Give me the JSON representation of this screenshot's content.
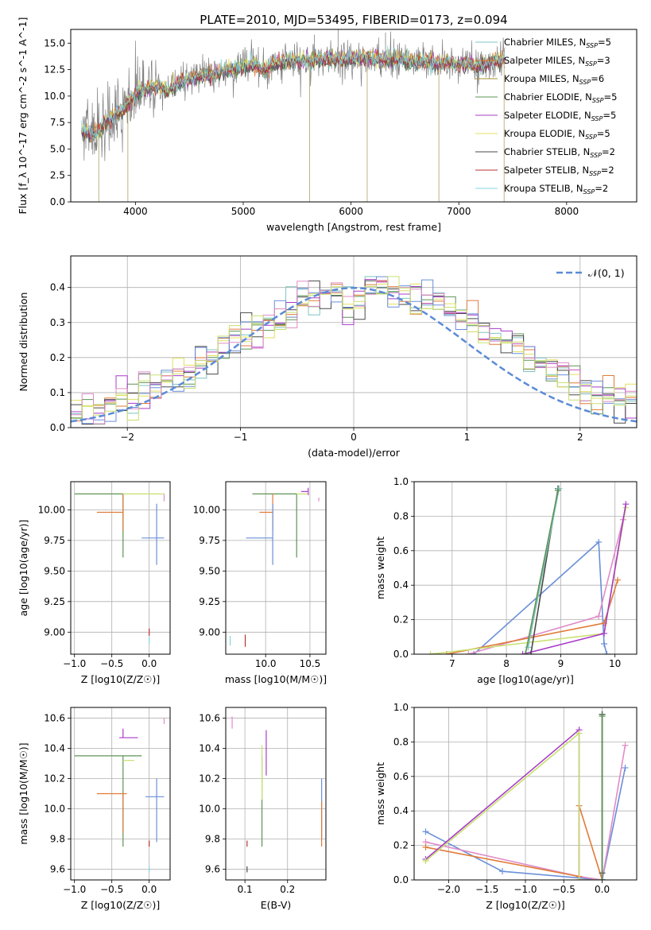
{
  "figure_title": "PLATE=2010, MJD=53495, FIBERID=0173, z=0.094",
  "series_colors": {
    "Chabrier MILES": "#7fc4c0",
    "Salpeter MILES": "#e07b39",
    "Kroupa MILES": "#a89030",
    "Chabrier ELODIE": "#5e9455",
    "Salpeter ELODIE": "#a83cc8",
    "Kroupa ELODIE": "#e0e060",
    "Chabrier STELIB": "#4a4a4a",
    "Salpeter STELIB": "#b83232",
    "Kroupa STELIB": "#80d8e0",
    "blue": "#6a8fd8",
    "pink": "#e08cc8",
    "lime": "#c8e070"
  },
  "chart_data": [
    {
      "id": "spectrum",
      "type": "line",
      "title": "PLATE=2010, MJD=53495, FIBERID=0173, z=0.094",
      "xlabel": "wavelength [Angstrom, rest frame]",
      "ylabel": "Flux [f_λ 10^-17 erg cm^-2 s^-1 A^-1]",
      "xlim": [
        3400,
        8650
      ],
      "ylim": [
        0,
        16.3
      ],
      "xticks": [
        4000,
        5000,
        6000,
        7000,
        8000
      ],
      "yticks": [
        "0.0",
        "2.5",
        "5.0",
        "7.5",
        "10.0",
        "12.5",
        "15.0"
      ],
      "grid": false,
      "legend_position": "right",
      "legend": [
        {
          "label": "Chabrier MILES, N",
          "sub": "SSP",
          "tail": "=5",
          "color": "#7fc4c0"
        },
        {
          "label": "Salpeter MILES, N",
          "sub": "SSP",
          "tail": "=3",
          "color": "#e07b39"
        },
        {
          "label": "Kroupa MILES, N",
          "sub": "SSP",
          "tail": "=6",
          "color": "#a89030"
        },
        {
          "label": "Chabrier ELODIE, N",
          "sub": "SSP",
          "tail": "=5",
          "color": "#5e9455"
        },
        {
          "label": "Salpeter ELODIE, N",
          "sub": "SSP",
          "tail": "=5",
          "color": "#a83cc8"
        },
        {
          "label": "Kroupa ELODIE, N",
          "sub": "SSP",
          "tail": "=5",
          "color": "#e0e060"
        },
        {
          "label": "Chabrier STELIB, N",
          "sub": "SSP",
          "tail": "=2",
          "color": "#4a4a4a"
        },
        {
          "label": "Salpeter STELIB, N",
          "sub": "SSP",
          "tail": "=2",
          "color": "#b83232"
        },
        {
          "label": "Kroupa STELIB, N",
          "sub": "SSP",
          "tail": "=2",
          "color": "#80d8e0"
        }
      ],
      "continuum": [
        [
          3500,
          6.8
        ],
        [
          3600,
          6.3
        ],
        [
          3700,
          7.2
        ],
        [
          3800,
          8.2
        ],
        [
          3900,
          8.6
        ],
        [
          4000,
          10.4
        ],
        [
          4100,
          10.6
        ],
        [
          4200,
          11.0
        ],
        [
          4300,
          10.4
        ],
        [
          4400,
          11.2
        ],
        [
          4500,
          11.5
        ],
        [
          4600,
          11.8
        ],
        [
          4700,
          12.0
        ],
        [
          4800,
          12.3
        ],
        [
          4900,
          12.5
        ],
        [
          5000,
          12.7
        ],
        [
          5100,
          12.9
        ],
        [
          5200,
          12.4
        ],
        [
          5300,
          13.1
        ],
        [
          5400,
          13.2
        ],
        [
          5500,
          13.3
        ],
        [
          5600,
          13.4
        ],
        [
          5700,
          13.5
        ],
        [
          5800,
          13.6
        ],
        [
          5900,
          13.3
        ],
        [
          6000,
          13.6
        ],
        [
          6100,
          13.5
        ],
        [
          6200,
          13.6
        ],
        [
          6300,
          13.4
        ],
        [
          6400,
          13.5
        ],
        [
          6500,
          13.4
        ],
        [
          6600,
          13.2
        ],
        [
          6700,
          13.3
        ],
        [
          6800,
          13.1
        ],
        [
          6900,
          13.2
        ],
        [
          7000,
          13.0
        ],
        [
          7100,
          13.0
        ],
        [
          7200,
          12.8
        ],
        [
          7300,
          13.2
        ],
        [
          7400,
          13.4
        ]
      ],
      "spikes": [
        [
          3660,
          0
        ],
        [
          3930,
          0
        ],
        [
          5615,
          0
        ],
        [
          6150,
          0
        ],
        [
          6815,
          0
        ],
        [
          7420,
          0
        ],
        [
          6320,
          16
        ],
        [
          5660,
          15.8
        ],
        [
          5880,
          16.3
        ]
      ]
    },
    {
      "id": "residuals",
      "type": "histogram",
      "xlabel": "(data-model)/error",
      "ylabel": "Normed distribution",
      "xlim": [
        -2.5,
        2.5
      ],
      "ylim": [
        0,
        0.49
      ],
      "xticks": [
        "−2",
        "−1",
        "0",
        "1",
        "2"
      ],
      "yticks": [
        "0.0",
        "0.1",
        "0.2",
        "0.3",
        "0.4"
      ],
      "grid": true,
      "legend_position": "top-right",
      "legend": [
        {
          "label": "𝒩(0, 1)",
          "color": "#5b8bd6"
        }
      ],
      "normal_curve": {
        "mean": 0,
        "sigma": 1
      }
    },
    {
      "id": "age_vs_Z",
      "type": "errorbar",
      "xlabel": "Z [log10(Z/Z☉)]",
      "ylabel": "age [log10(age/yr)]",
      "xlim": [
        -1.05,
        0.28
      ],
      "ylim": [
        8.82,
        10.23
      ],
      "xticks": [
        "−1.0",
        "−0.5",
        "0.0"
      ],
      "yticks": [
        "9.00",
        "9.25",
        "9.50",
        "9.75",
        "10.00"
      ],
      "grid": true,
      "points": [
        {
          "x": -0.35,
          "y": 10.13,
          "xerr": [
            0.65,
            0.0
          ],
          "yerr": [
            0.52,
            0.0
          ],
          "color": "#5e9455"
        },
        {
          "x": -0.35,
          "y": 9.98,
          "xerr": [
            0.35,
            0.0
          ],
          "yerr": [
            0.15,
            0.15
          ],
          "color": "#e07b39"
        },
        {
          "x": 0.05,
          "y": 10.13,
          "xerr": [
            0.4,
            0.15
          ],
          "yerr": [
            0.0,
            0.0
          ],
          "color": "#c8e070"
        },
        {
          "x": 0.1,
          "y": 9.77,
          "xerr": [
            0.2,
            0.1
          ],
          "yerr": [
            0.22,
            0.28
          ],
          "color": "#6a8fd8"
        },
        {
          "x": 0.2,
          "y": 10.1,
          "xerr": [
            0.0,
            0.0
          ],
          "yerr": [
            0.03,
            0.03
          ],
          "color": "#e08cc8"
        },
        {
          "x": 0.0,
          "y": 9.0,
          "xerr": [
            0.0,
            0.0
          ],
          "yerr": [
            0.03,
            0.03
          ],
          "color": "#b83232"
        },
        {
          "x": 0.0,
          "y": 8.93,
          "xerr": [
            0.0,
            0.0
          ],
          "yerr": [
            0.03,
            0.03
          ],
          "color": "#80d8e0"
        }
      ]
    },
    {
      "id": "age_vs_mass",
      "type": "errorbar",
      "xlabel": "mass [log10(M/M☉)]",
      "ylabel": "",
      "xlim": [
        9.55,
        10.68
      ],
      "ylim": [
        8.82,
        10.23
      ],
      "xticks": [
        "10.0",
        "10.5"
      ],
      "yticks": [
        "9.00",
        "9.25",
        "9.50",
        "9.75",
        "10.00"
      ],
      "grid": true,
      "points": [
        {
          "x": 10.35,
          "y": 10.13,
          "xerr": [
            0.5,
            0.0
          ],
          "yerr": [
            0.52,
            0.0
          ],
          "color": "#5e9455"
        },
        {
          "x": 10.08,
          "y": 9.98,
          "xerr": [
            0.15,
            0.0
          ],
          "yerr": [
            0.15,
            0.15
          ],
          "color": "#e07b39"
        },
        {
          "x": 10.35,
          "y": 10.13,
          "xerr": [
            0.0,
            0.12
          ],
          "yerr": [
            0.0,
            0.0
          ],
          "color": "#c8e070"
        },
        {
          "x": 10.08,
          "y": 9.77,
          "xerr": [
            0.3,
            0.0
          ],
          "yerr": [
            0.22,
            0.28
          ],
          "color": "#6a8fd8"
        },
        {
          "x": 10.6,
          "y": 10.1,
          "xerr": [
            0.0,
            0.0
          ],
          "yerr": [
            0.03,
            0.0
          ],
          "color": "#e08cc8"
        },
        {
          "x": 10.48,
          "y": 10.15,
          "xerr": [
            0.08,
            0.0
          ],
          "yerr": [
            0.03,
            0.03
          ],
          "color": "#a83cc8"
        },
        {
          "x": 9.77,
          "y": 8.93,
          "xerr": [
            0.0,
            0.0
          ],
          "yerr": [
            0.05,
            0.05
          ],
          "color": "#b83232"
        },
        {
          "x": 9.6,
          "y": 8.93,
          "xerr": [
            0.0,
            0.0
          ],
          "yerr": [
            0.04,
            0.04
          ],
          "color": "#80d8e0"
        }
      ]
    },
    {
      "id": "weight_vs_age",
      "type": "line",
      "xlabel": "age [log10(age/yr)]",
      "ylabel": "mass weight",
      "xlim": [
        6.3,
        10.4
      ],
      "ylim": [
        0,
        1.0
      ],
      "xticks": [
        "7",
        "8",
        "9",
        "10"
      ],
      "yticks": [
        "0.0",
        "0.2",
        "0.4",
        "0.6",
        "0.8",
        "1.0"
      ],
      "grid": true,
      "series": [
        {
          "color": "#6a8fd8",
          "x": [
            7.4,
            9.7,
            9.8,
            9.85
          ],
          "y": [
            0.0,
            0.65,
            0.06,
            0.0
          ]
        },
        {
          "color": "#e08cc8",
          "x": [
            7.3,
            9.7,
            10.15
          ],
          "y": [
            0.0,
            0.22,
            0.78
          ]
        },
        {
          "color": "#e07b39",
          "x": [
            6.9,
            9.8,
            10.05
          ],
          "y": [
            0.0,
            0.18,
            0.43
          ]
        },
        {
          "color": "#c8e070",
          "x": [
            6.6,
            9.8,
            10.2
          ],
          "y": [
            0.0,
            0.12,
            0.85
          ]
        },
        {
          "color": "#a83cc8",
          "x": [
            8.3,
            9.8,
            10.2
          ],
          "y": [
            0.0,
            0.12,
            0.87
          ]
        },
        {
          "color": "#4a4a4a",
          "x": [
            8.45,
            8.95
          ],
          "y": [
            0.0,
            0.96
          ]
        },
        {
          "color": "#7fc4c0",
          "x": [
            8.4,
            8.97
          ],
          "y": [
            0.04,
            0.96
          ]
        },
        {
          "color": "#5e9455",
          "x": [
            8.35,
            8.95
          ],
          "y": [
            0.0,
            0.95
          ]
        }
      ]
    },
    {
      "id": "mass_vs_Z",
      "type": "errorbar",
      "xlabel": "Z [log10(Z/Z☉)]",
      "ylabel": "mass [log10(M/M☉)]",
      "xlim": [
        -1.05,
        0.28
      ],
      "ylim": [
        9.53,
        10.67
      ],
      "xticks": [
        "−1.0",
        "−0.5",
        "0.0"
      ],
      "yticks": [
        "9.6",
        "9.8",
        "10.0",
        "10.2",
        "10.4",
        "10.6"
      ],
      "grid": true,
      "points": [
        {
          "x": -0.35,
          "y": 10.35,
          "xerr": [
            0.65,
            0.25
          ],
          "yerr": [
            0.6,
            0.0
          ],
          "color": "#5e9455"
        },
        {
          "x": -0.35,
          "y": 10.1,
          "xerr": [
            0.35,
            0.05
          ],
          "yerr": [
            0.26,
            0.0
          ],
          "color": "#e07b39"
        },
        {
          "x": -0.35,
          "y": 10.32,
          "xerr": [
            0.0,
            0.15
          ],
          "yerr": [
            0.0,
            0.0
          ],
          "color": "#c8e070"
        },
        {
          "x": -0.35,
          "y": 10.47,
          "xerr": [
            0.05,
            0.2
          ],
          "yerr": [
            0.0,
            0.06
          ],
          "color": "#a83cc8"
        },
        {
          "x": 0.1,
          "y": 10.08,
          "xerr": [
            0.15,
            0.1
          ],
          "yerr": [
            0.3,
            0.12
          ],
          "color": "#6a8fd8"
        },
        {
          "x": 0.2,
          "y": 10.6,
          "xerr": [
            0.0,
            0.0
          ],
          "yerr": [
            0.04,
            0.0
          ],
          "color": "#e08cc8"
        },
        {
          "x": 0.0,
          "y": 9.77,
          "xerr": [
            0.0,
            0.0
          ],
          "yerr": [
            0.02,
            0.02
          ],
          "color": "#b83232"
        },
        {
          "x": 0.0,
          "y": 9.6,
          "xerr": [
            0.0,
            0.0
          ],
          "yerr": [
            0.02,
            0.02
          ],
          "color": "#80d8e0"
        }
      ]
    },
    {
      "id": "mass_vs_EBV",
      "type": "errorbar",
      "xlabel": "E(B-V)",
      "ylabel": "",
      "xlim": [
        0.055,
        0.29
      ],
      "ylim": [
        9.53,
        10.67
      ],
      "xticks": [
        "0.1",
        "0.2"
      ],
      "yticks": [
        "9.6",
        "9.8",
        "10.0",
        "10.2",
        "10.4",
        "10.6"
      ],
      "grid": true,
      "points": [
        {
          "x": 0.14,
          "y": 10.35,
          "xerr": [
            0.0,
            0.0
          ],
          "yerr": [
            0.6,
            0.0
          ],
          "color": "#5e9455"
        },
        {
          "x": 0.14,
          "y": 10.32,
          "xerr": [
            0.0,
            0.0
          ],
          "yerr": [
            0.26,
            0.1
          ],
          "color": "#c8e070"
        },
        {
          "x": 0.15,
          "y": 10.37,
          "xerr": [
            0.0,
            0.0
          ],
          "yerr": [
            0.15,
            0.15
          ],
          "color": "#a83cc8"
        },
        {
          "x": 0.28,
          "y": 10.0,
          "xerr": [
            0.0,
            0.0
          ],
          "yerr": [
            0.2,
            0.2
          ],
          "color": "#6a8fd8"
        },
        {
          "x": 0.28,
          "y": 9.95,
          "xerr": [
            0.0,
            0.0
          ],
          "yerr": [
            0.2,
            0.1
          ],
          "color": "#e07b39"
        },
        {
          "x": 0.07,
          "y": 10.58,
          "xerr": [
            0.0,
            0.0
          ],
          "yerr": [
            0.05,
            0.03
          ],
          "color": "#e08cc8"
        },
        {
          "x": 0.105,
          "y": 9.77,
          "xerr": [
            0.0,
            0.0
          ],
          "yerr": [
            0.02,
            0.02
          ],
          "color": "#b83232"
        },
        {
          "x": 0.105,
          "y": 9.6,
          "xerr": [
            0.0,
            0.0
          ],
          "yerr": [
            0.02,
            0.02
          ],
          "color": "#4a4a4a"
        }
      ]
    },
    {
      "id": "weight_vs_Z",
      "type": "line",
      "xlabel": "Z [log10(Z/Z☉)]",
      "ylabel": "mass weight",
      "xlim": [
        -2.45,
        0.45
      ],
      "ylim": [
        0,
        1.0
      ],
      "xticks": [
        "−2.0",
        "−1.5",
        "−1.0",
        "−0.5",
        "0.0"
      ],
      "yticks": [
        "0.0",
        "0.2",
        "0.4",
        "0.6",
        "0.8",
        "1.0"
      ],
      "grid": true,
      "series": [
        {
          "color": "#6a8fd8",
          "x": [
            -2.3,
            -1.3,
            0.0,
            0.3
          ],
          "y": [
            0.28,
            0.05,
            0.0,
            0.65
          ]
        },
        {
          "color": "#e08cc8",
          "x": [
            -2.3,
            -0.3,
            0.0,
            0.3
          ],
          "y": [
            0.22,
            0.02,
            0.0,
            0.78
          ]
        },
        {
          "color": "#e07b39",
          "x": [
            -2.3,
            -0.3,
            -0.3,
            0.0
          ],
          "y": [
            0.19,
            0.02,
            0.43,
            0.0
          ]
        },
        {
          "color": "#a83cc8",
          "x": [
            -2.3,
            -0.3,
            -0.3,
            0.0
          ],
          "y": [
            0.12,
            0.87,
            0.0,
            0.0
          ]
        },
        {
          "color": "#c8e070",
          "x": [
            -2.3,
            -0.3,
            -0.3,
            0.0
          ],
          "y": [
            0.11,
            0.85,
            0.0,
            0.0
          ]
        },
        {
          "color": "#7fc4c0",
          "x": [
            0.0,
            0.0
          ],
          "y": [
            0.96,
            0.0
          ]
        },
        {
          "color": "#4a4a4a",
          "x": [
            0.0,
            0.0
          ],
          "y": [
            0.96,
            0.04
          ]
        },
        {
          "color": "#5e9455",
          "x": [
            0.0,
            0.0
          ],
          "y": [
            0.95,
            0.0
          ]
        }
      ]
    }
  ]
}
